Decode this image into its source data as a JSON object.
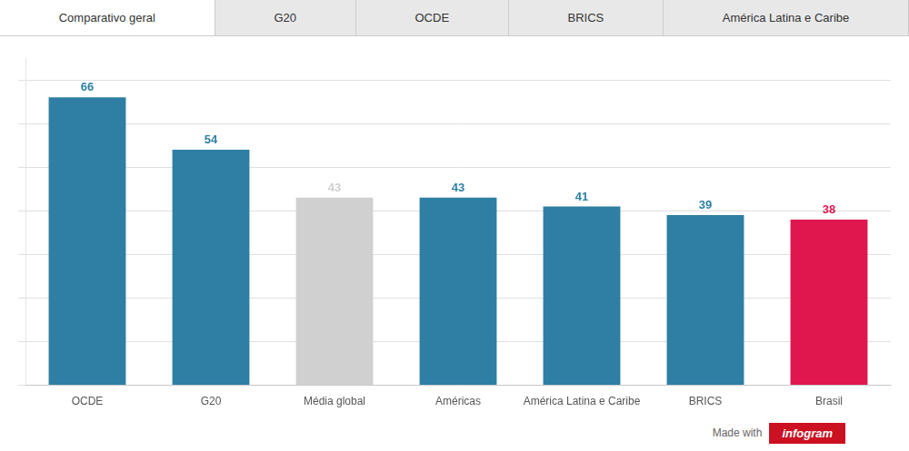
{
  "chart_data": {
    "type": "bar",
    "categories": [
      "OCDE",
      "G20",
      "Média global",
      "Américas",
      "América Latina e Caribe",
      "BRICS",
      "Brasil"
    ],
    "values": [
      66,
      54,
      43,
      43,
      41,
      39,
      38
    ],
    "colors": [
      "#2e7fa3",
      "#2e7fa3",
      "#d0d0d0",
      "#2e7fa3",
      "#2e7fa3",
      "#2e7fa3",
      "#e0174e"
    ],
    "ylim": [
      0,
      75
    ],
    "yticks": [
      0,
      10,
      20,
      30,
      40,
      50,
      60,
      70
    ],
    "grid": true,
    "data_labels": true,
    "tick_labels": "x",
    "annotations": [
      "Comparativo geral",
      "G20",
      "OCDE",
      "BRICS",
      "América Latina e Caribe",
      "Made with",
      "infogram"
    ]
  }
}
